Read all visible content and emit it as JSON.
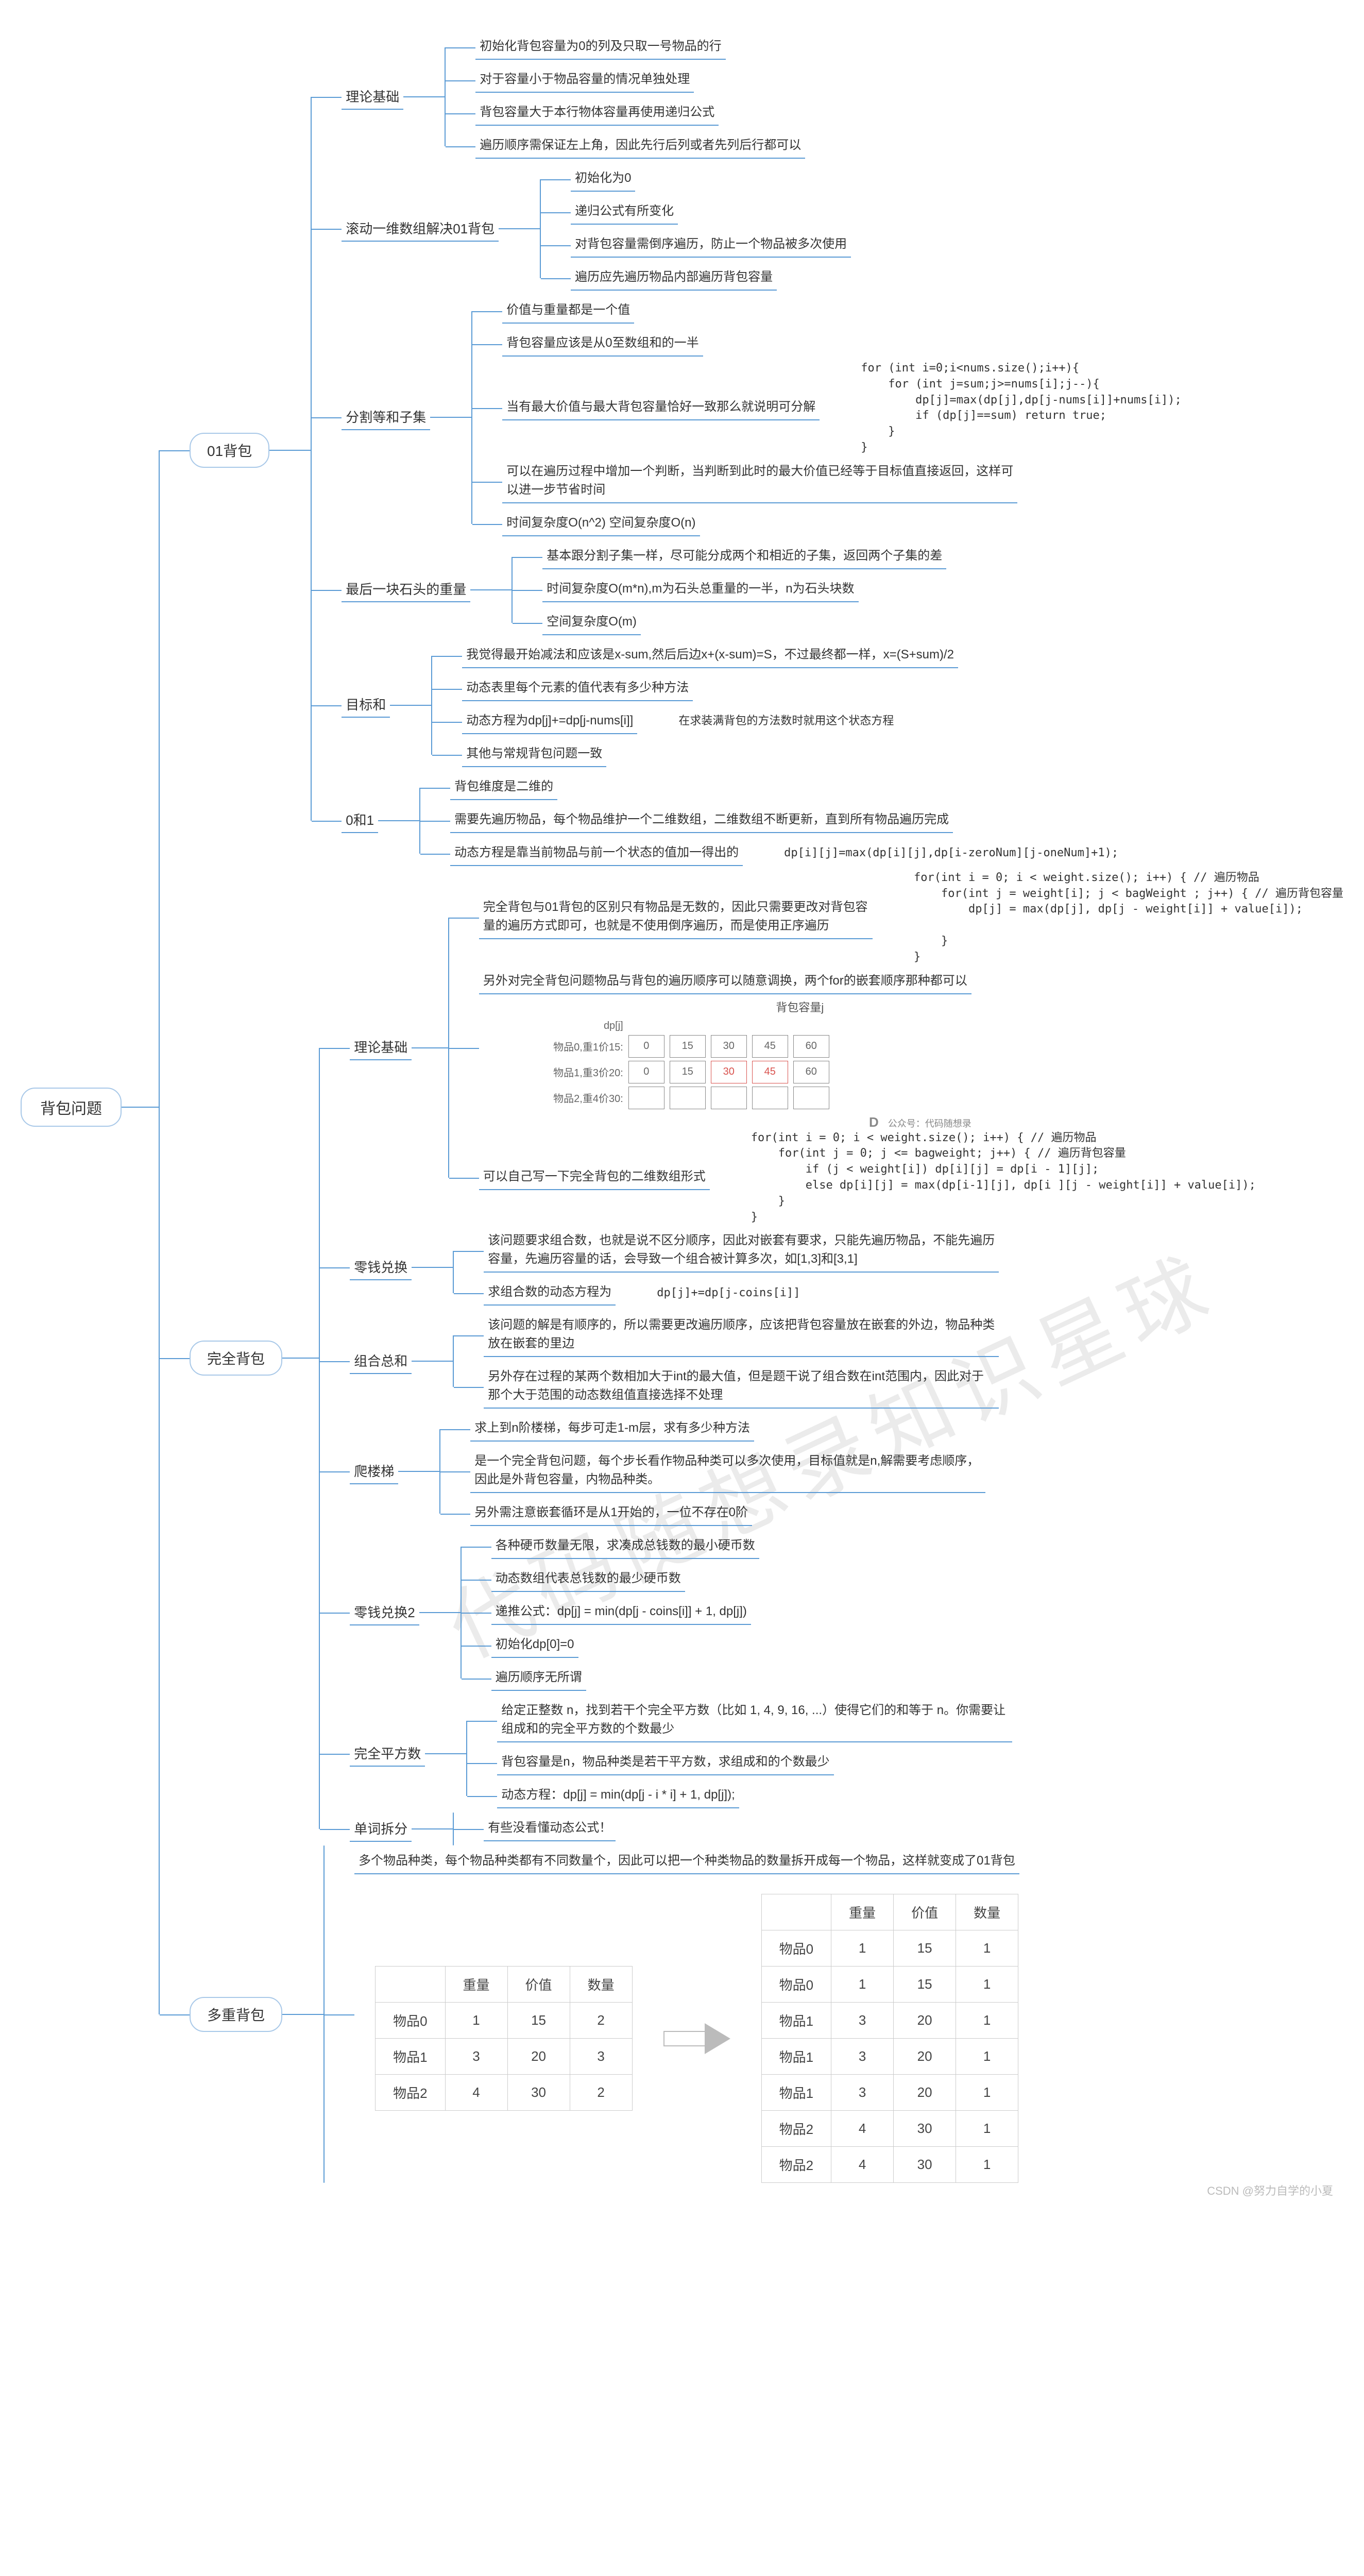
{
  "watermark": "代码随想录知识星球",
  "csdn_footer": "CSDN @努力自学的小夏",
  "root": "背包问题",
  "colors": {
    "line": "#5b9bd5",
    "border": "#a8c8e8"
  },
  "knapsack01": {
    "label": "01背包",
    "theory": {
      "label": "理论基础",
      "items": [
        "初始化背包容量为0的列及只取一号物品的行",
        "对于容量小于物品容量的情况单独处理",
        "背包容量大于本行物体容量再使用递归公式",
        "遍历顺序需保证左上角，因此先行后列或者先列后行都可以"
      ]
    },
    "rolling": {
      "label": "滚动一维数组解决01背包",
      "items": [
        "初始化为0",
        "递归公式有所变化",
        "对背包容量需倒序遍历，防止一个物品被多次使用",
        "遍历应先遍历物品内部遍历背包容量"
      ]
    },
    "partition": {
      "label": "分割等和子集",
      "items": [
        "价值与重量都是一个值",
        "背包容量应该是从0至数组和的一半",
        "当有最大价值与最大背包容量恰好一致那么就说明可分解",
        "可以在遍历过程中增加一个判断，当判断到此时的最大价值已经等于目标值直接返回，这样可以进一步节省时间",
        "时间复杂度O(n^2) 空间复杂度O(n)"
      ],
      "code": "for (int i=0;i<nums.size();i++){\n    for (int j=sum;j>=nums[i];j--){\n        dp[j]=max(dp[j],dp[j-nums[i]]+nums[i]);\n        if (dp[j]==sum) return true;\n    }\n}"
    },
    "laststone": {
      "label": "最后一块石头的重量",
      "items": [
        "基本跟分割子集一样，尽可能分成两个和相近的子集，返回两个子集的差",
        "时间复杂度O(m*n),m为石头总重量的一半，n为石头块数",
        "空间复杂度O(m)"
      ]
    },
    "targetsum": {
      "label": "目标和",
      "items": [
        "我觉得最开始减法和应该是x-sum,然后后边x+(x-sum)=S，不过最终都一样，x=(S+sum)/2",
        "动态表里每个元素的值代表有多少种方法",
        "动态方程为dp[j]+=dp[j-nums[i]]",
        "其他与常规背包问题一致"
      ],
      "side": "在求装满背包的方法数时就用这个状态方程"
    },
    "zeroone": {
      "label": "0和1",
      "items": [
        "背包维度是二维的",
        "需要先遍历物品，每个物品维护一个二维数组，二维数组不断更新，直到所有物品遍历完成",
        "动态方程是靠当前物品与前一个状态的值加一得出的"
      ],
      "side": "dp[i][j]=max(dp[i][j],dp[i-zeroNum][j-oneNum]+1);"
    }
  },
  "complete": {
    "label": "完全背包",
    "theory": {
      "label": "理论基础",
      "p1": "完全背包与01背包的区别只有物品是无数的，因此只需要更改对背包容量的遍历方式即可，也就是不使用倒序遍历，而是使用正序遍历",
      "p2": "另外对完全背包问题物品与背包的遍历顺序可以随意调换，两个for的嵌套顺序那种都可以",
      "p3": "可以自己写一下完全背包的二维数组形式",
      "code1": "for(int i = 0; i < weight.size(); i++) { // 遍历物品\n    for(int j = weight[i]; j < bagWeight ; j++) { // 遍历背包容量\n        dp[j] = max(dp[j], dp[j - weight[i]] + value[i]);\n\n    }\n}",
      "code2": "for(int i = 0; i < weight.size(); i++) { // 遍历物品\n    for(int j = 0; j <= bagweight; j++) { // 遍历背包容量\n        if (j < weight[i]) dp[i][j] = dp[i - 1][j];\n        else dp[i][j] = max(dp[i-1][j], dp[i ][j - weight[i]] + value[i]);\n    }\n}",
      "grid": {
        "title": "背包容量j",
        "dpj": "dp[j]",
        "rows": [
          {
            "label": "物品0,重1价15:",
            "cells": [
              "0",
              "15",
              "30",
              "45",
              "60"
            ]
          },
          {
            "label": "物品1,重3价20:",
            "cells": [
              "0",
              "15",
              "30",
              "45",
              "60"
            ],
            "hl": [
              2,
              3
            ]
          },
          {
            "label": "物品2,重4价30:",
            "cells": [
              "",
              "",
              "",
              "",
              ""
            ]
          }
        ],
        "sig_logo": "D",
        "sig": "公众号：代码随想录"
      }
    },
    "coin1": {
      "label": "零钱兑换",
      "items": [
        "该问题要求组合数，也就是说不区分顺序，因此对嵌套有要求，只能先遍历物品，不能先遍历容量，先遍历容量的话，会导致一个组合被计算多次，如[1,3]和[3,1]",
        "求组合数的动态方程为"
      ],
      "side": "dp[j]+=dp[j-coins[i]]"
    },
    "combo": {
      "label": "组合总和",
      "items": [
        "该问题的解是有顺序的，所以需要更改遍历顺序，应该把背包容量放在嵌套的外边，物品种类放在嵌套的里边",
        "另外存在过程的某两个数相加大于int的最大值，但是题干说了组合数在int范围内，因此对于那个大于范围的动态数组值直接选择不处理"
      ]
    },
    "stairs": {
      "label": "爬楼梯",
      "items": [
        "求上到n阶楼梯，每步可走1-m层，求有多少种方法",
        "是一个完全背包问题，每个步长看作物品种类可以多次使用，目标值就是n,解需要考虑顺序，因此是外背包容量，内物品种类。",
        "另外需注意嵌套循环是从1开始的，一位不存在0阶"
      ]
    },
    "coin2": {
      "label": "零钱兑换2",
      "items": [
        "各种硬币数量无限，求凑成总钱数的最小硬币数",
        "动态数组代表总钱数的最少硬币数",
        "递推公式：dp[j] = min(dp[j - coins[i]] + 1, dp[j])",
        "初始化dp[0]=0",
        "遍历顺序无所谓"
      ]
    },
    "square": {
      "label": "完全平方数",
      "items": [
        "给定正整数 n，找到若干个完全平方数（比如 1, 4, 9, 16, ...）使得它们的和等于 n。你需要让组成和的完全平方数的个数最少",
        "背包容量是n，物品种类是若干平方数，求组成和的个数最少",
        "动态方程：dp[j] = min(dp[j - i * i] + 1, dp[j]);"
      ]
    },
    "wordbreak": {
      "label": "单词拆分",
      "items": [
        "有些没看懂动态公式！"
      ]
    }
  },
  "multi": {
    "label": "多重背包",
    "desc": "多个物品种类，每个物品种类都有不同数量个，因此可以把一个种类物品的数量拆开成每一个物品，这样就变成了01背包",
    "table_left": {
      "headers": [
        "",
        "重量",
        "价值",
        "数量"
      ],
      "rows": [
        [
          "物品0",
          "1",
          "15",
          "2"
        ],
        [
          "物品1",
          "3",
          "20",
          "3"
        ],
        [
          "物品2",
          "4",
          "30",
          "2"
        ]
      ]
    },
    "table_right": {
      "headers": [
        "",
        "重量",
        "价值",
        "数量"
      ],
      "rows": [
        [
          "物品0",
          "1",
          "15",
          "1"
        ],
        [
          "物品0",
          "1",
          "15",
          "1"
        ],
        [
          "物品1",
          "3",
          "20",
          "1"
        ],
        [
          "物品1",
          "3",
          "20",
          "1"
        ],
        [
          "物品1",
          "3",
          "20",
          "1"
        ],
        [
          "物品2",
          "4",
          "30",
          "1"
        ],
        [
          "物品2",
          "4",
          "30",
          "1"
        ]
      ]
    }
  }
}
